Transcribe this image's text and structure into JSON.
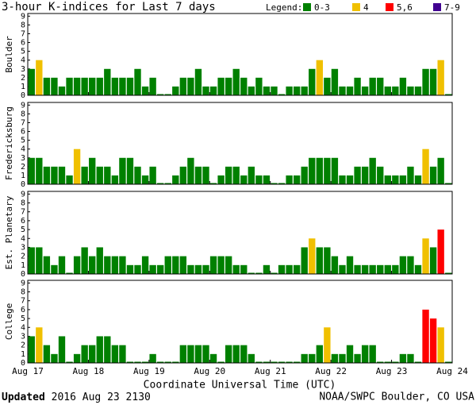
{
  "chart_data": {
    "type": "bar",
    "title": "3-hour K-indices for Last 7 days",
    "legend": {
      "title": "Legend:",
      "items": [
        {
          "name": "0-3",
          "color": "#008000"
        },
        {
          "name": "4",
          "color": "#f0c000"
        },
        {
          "name": "5,6",
          "color": "#ff0000"
        },
        {
          "name": "7-9",
          "color": "#400090"
        }
      ]
    },
    "xlabel": "Coordinate Universal Time (UTC)",
    "xlim": [
      0,
      56
    ],
    "xticks": [
      {
        "value": 0,
        "label": "Aug 17"
      },
      {
        "value": 8,
        "label": "Aug 18"
      },
      {
        "value": 16,
        "label": "Aug 19"
      },
      {
        "value": 24,
        "label": "Aug 20"
      },
      {
        "value": 32,
        "label": "Aug 21"
      },
      {
        "value": 40,
        "label": "Aug 22"
      },
      {
        "value": 48,
        "label": "Aug 23"
      },
      {
        "value": 56,
        "label": "Aug 24"
      }
    ],
    "ylim": [
      0,
      9.3
    ],
    "yticks": [
      0,
      1,
      2,
      3,
      4,
      5,
      6,
      7,
      8,
      9
    ],
    "panels": [
      {
        "ylabel": "Boulder",
        "values": [
          3,
          4,
          2,
          2,
          1,
          2,
          2,
          2,
          2,
          2,
          3,
          2,
          2,
          2,
          3,
          1,
          2,
          0,
          0,
          1,
          2,
          2,
          3,
          1,
          1,
          2,
          2,
          3,
          2,
          1,
          2,
          1,
          1,
          0,
          1,
          1,
          1,
          3,
          4,
          2,
          3,
          1,
          1,
          2,
          1,
          2,
          2,
          1,
          1,
          2,
          1,
          1,
          3,
          3,
          4,
          0
        ]
      },
      {
        "ylabel": "Fredericksburg",
        "values": [
          3,
          3,
          2,
          2,
          2,
          1,
          4,
          2,
          3,
          2,
          2,
          1,
          3,
          3,
          2,
          1,
          2,
          0,
          0,
          1,
          2,
          3,
          2,
          2,
          0,
          1,
          2,
          2,
          1,
          2,
          1,
          1,
          0,
          0,
          1,
          1,
          2,
          3,
          3,
          3,
          3,
          1,
          1,
          2,
          2,
          3,
          2,
          1,
          1,
          1,
          2,
          1,
          4,
          2,
          3,
          0
        ]
      },
      {
        "ylabel": "Est. Planetary",
        "values": [
          3,
          3,
          2,
          1,
          2,
          0,
          2,
          3,
          2,
          3,
          2,
          2,
          2,
          1,
          1,
          2,
          1,
          1,
          2,
          2,
          2,
          1,
          1,
          1,
          2,
          2,
          2,
          1,
          1,
          0,
          0,
          1,
          0,
          1,
          1,
          1,
          3,
          4,
          3,
          3,
          2,
          1,
          2,
          1,
          1,
          1,
          1,
          1,
          1,
          2,
          2,
          1,
          4,
          3,
          5,
          0
        ]
      },
      {
        "ylabel": "College",
        "values": [
          3,
          4,
          2,
          1,
          3,
          0,
          1,
          2,
          2,
          3,
          3,
          2,
          2,
          0,
          0,
          0,
          1,
          0,
          0,
          0,
          2,
          2,
          2,
          2,
          1,
          0,
          2,
          2,
          2,
          1,
          0,
          0,
          0,
          0,
          0,
          0,
          1,
          1,
          2,
          4,
          1,
          1,
          2,
          1,
          2,
          2,
          0,
          0,
          0,
          1,
          1,
          0,
          6,
          5,
          4,
          0
        ]
      }
    ],
    "footer": {
      "updated_label": "Updated",
      "timestamp": "2016 Aug 23 2130",
      "source": "NOAA/SWPC Boulder, CO USA"
    }
  }
}
